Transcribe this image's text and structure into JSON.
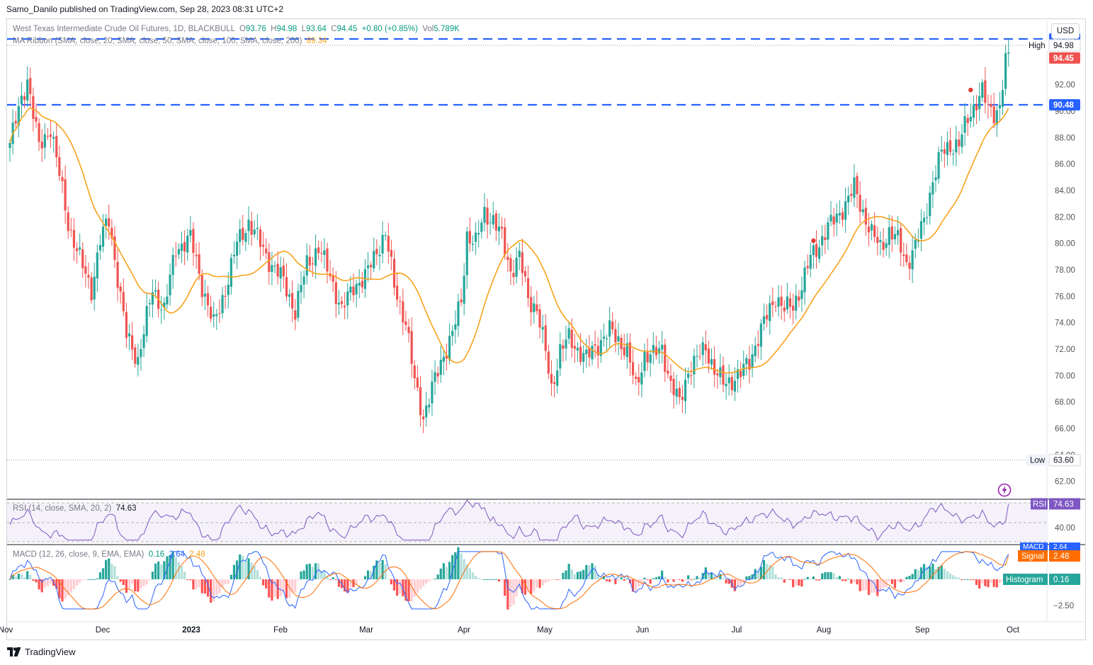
{
  "publisher": "Samo_Danilo published on TradingView.com, Sep 28, 2023 08:31 UTC+2",
  "legend": {
    "symbol": "West Texas Intermediate Crude Oil Futures, 1D, BLACKBULL",
    "o_label": "O",
    "o": "93.76",
    "h_label": "H",
    "h": "94.98",
    "l_label": "L",
    "l": "93.64",
    "c_label": "C",
    "c": "94.45",
    "change": "+0.80 (+0.85%)",
    "vol_label": "Vol",
    "vol": "5.789K",
    "ma": "MA Ribbon (SMA, close, 20, SMA, close, 50, SMA, close, 100, SMA, close, 200)",
    "ma_value": "89.34",
    "rsi": "RSI (14, close, SMA, 20, 2)",
    "rsi_value": "74.63",
    "macd": "MACD (12, 26, close, 9, EMA, EMA)",
    "macd_v1": "0.16",
    "macd_v2": "2.64",
    "macd_v3": "2.48"
  },
  "currency_button": "USD",
  "footer": "TradingView",
  "colors": {
    "up": "#26a69a",
    "down": "#ef5350",
    "ma": "#f7a21b",
    "dash": "#2962ff",
    "rsi": "#7e57c2",
    "macd": "#2962ff",
    "signal": "#ff6d00"
  },
  "chart_data": {
    "type": "candlestick",
    "price_axis_ticks": [
      "94.00",
      "92.00",
      "90.00",
      "88.00",
      "86.00",
      "84.00",
      "82.00",
      "80.00",
      "78.00",
      "76.00",
      "74.00",
      "72.00",
      "70.00",
      "68.00",
      "66.00",
      "64.00",
      "62.00"
    ],
    "ylim": [
      60.8,
      96.8
    ],
    "x_labels": [
      "Nov",
      "Dec",
      "2023",
      "Feb",
      "Mar",
      "Apr",
      "May",
      "Jun",
      "Jul",
      "Aug",
      "Sep",
      "Oct"
    ],
    "horizontal_levels": [
      95.46,
      90.48
    ],
    "high": {
      "label": "High",
      "value": "94.98"
    },
    "low": {
      "label": "Low",
      "value": "63.60"
    },
    "last_price": "94.45",
    "level_labels": [
      "95.46",
      "90.48"
    ],
    "anchors_close": [
      [
        0,
        87.6
      ],
      [
        6,
        92.5
      ],
      [
        10,
        87.2
      ],
      [
        14,
        88.8
      ],
      [
        20,
        81.5
      ],
      [
        25,
        78.2
      ],
      [
        28,
        76.5
      ],
      [
        31,
        80.2
      ],
      [
        34,
        81.8
      ],
      [
        40,
        73.0
      ],
      [
        44,
        71.2
      ],
      [
        49,
        76.5
      ],
      [
        53,
        75.0
      ],
      [
        57,
        79.6
      ],
      [
        62,
        80.4
      ],
      [
        66,
        76.8
      ],
      [
        70,
        73.8
      ],
      [
        74,
        76.5
      ],
      [
        78,
        80.0
      ],
      [
        82,
        81.6
      ],
      [
        86,
        80.0
      ],
      [
        90,
        78.3
      ],
      [
        94,
        77.2
      ],
      [
        98,
        74.8
      ],
      [
        102,
        78.5
      ],
      [
        106,
        79.6
      ],
      [
        110,
        77.6
      ],
      [
        114,
        74.9
      ],
      [
        118,
        76.8
      ],
      [
        122,
        77.4
      ],
      [
        126,
        79.5
      ],
      [
        129,
        80.7
      ],
      [
        132,
        76.8
      ],
      [
        136,
        74.0
      ],
      [
        139,
        69.5
      ],
      [
        142,
        66.9
      ],
      [
        145,
        69.0
      ],
      [
        149,
        71.6
      ],
      [
        152,
        73.2
      ],
      [
        155,
        75.6
      ],
      [
        157,
        80.7
      ],
      [
        160,
        80.0
      ],
      [
        163,
        82.3
      ],
      [
        166,
        81.8
      ],
      [
        169,
        80.4
      ],
      [
        172,
        77.9
      ],
      [
        175,
        79.0
      ],
      [
        178,
        75.8
      ],
      [
        181,
        75.1
      ],
      [
        184,
        71.7
      ],
      [
        186,
        69.0
      ],
      [
        189,
        71.9
      ],
      [
        192,
        72.8
      ],
      [
        195,
        72.0
      ],
      [
        198,
        71.3
      ],
      [
        202,
        72.4
      ],
      [
        206,
        73.4
      ],
      [
        209,
        72.7
      ],
      [
        212,
        71.9
      ],
      [
        215,
        69.0
      ],
      [
        218,
        71.6
      ],
      [
        221,
        71.5
      ],
      [
        224,
        72.1
      ],
      [
        227,
        69.3
      ],
      [
        230,
        67.9
      ],
      [
        233,
        70.4
      ],
      [
        236,
        71.2
      ],
      [
        239,
        72.2
      ],
      [
        242,
        70.4
      ],
      [
        245,
        69.4
      ],
      [
        248,
        69.7
      ],
      [
        251,
        70.1
      ],
      [
        254,
        71.1
      ],
      [
        257,
        72.9
      ],
      [
        260,
        74.5
      ],
      [
        263,
        76.0
      ],
      [
        266,
        75.0
      ],
      [
        269,
        75.3
      ],
      [
        272,
        76.8
      ],
      [
        275,
        78.9
      ],
      [
        278,
        80.0
      ],
      [
        281,
        81.2
      ],
      [
        284,
        82.0
      ],
      [
        287,
        83.0
      ],
      [
        290,
        84.2
      ],
      [
        293,
        82.4
      ],
      [
        296,
        80.7
      ],
      [
        299,
        79.7
      ],
      [
        302,
        80.9
      ],
      [
        305,
        80.2
      ],
      [
        308,
        78.5
      ],
      [
        311,
        79.8
      ],
      [
        314,
        81.7
      ],
      [
        317,
        84.8
      ],
      [
        320,
        86.8
      ],
      [
        323,
        87.4
      ],
      [
        326,
        87.5
      ],
      [
        329,
        89.4
      ],
      [
        332,
        90.8
      ],
      [
        334,
        91.5
      ],
      [
        336,
        90.1
      ],
      [
        338,
        89.9
      ],
      [
        340,
        90.4
      ],
      [
        342,
        93.7
      ],
      [
        343,
        94.45
      ]
    ]
  }
}
